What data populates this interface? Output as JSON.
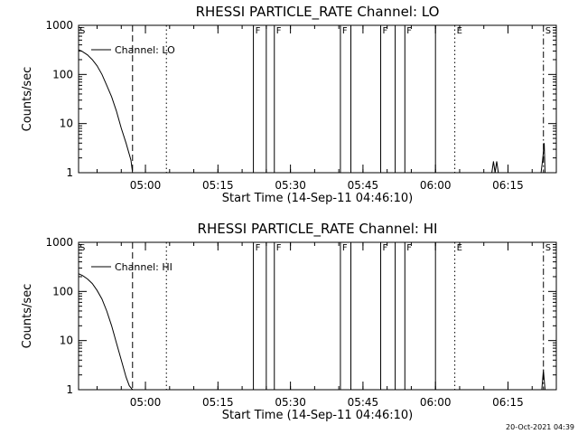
{
  "colors": {
    "background": "#ffffff",
    "foreground": "#000000"
  },
  "footer": {
    "date": "20-Oct-2021 04:39"
  },
  "chart_data": [
    {
      "type": "line",
      "title": "RHESSI PARTICLE_RATE Channel: LO",
      "xlabel": "Start Time (14-Sep-11 04:46:10)",
      "ylabel": "Counts/sec",
      "y_scale": "log",
      "ylim": [
        1,
        1000
      ],
      "y_ticks": [
        "1",
        "10",
        "100",
        "1000"
      ],
      "xlim": [
        "04:46:10",
        "06:25:00"
      ],
      "x_ticks": [
        "05:00",
        "05:15",
        "05:30",
        "05:45",
        "06:00",
        "06:15"
      ],
      "legend": {
        "label": "Channel: LO",
        "placement": "top-left"
      },
      "grid": false,
      "series": [
        {
          "name": "Channel: LO",
          "x": [
            "04:46:10",
            "04:47:00",
            "04:48:00",
            "04:49:00",
            "04:50:00",
            "04:51:00",
            "04:52:00",
            "04:53:00",
            "04:54:00",
            "04:55:00",
            "04:56:00",
            "04:57:00",
            "04:57:20"
          ],
          "y": [
            320,
            290,
            250,
            200,
            150,
            100,
            60,
            35,
            18,
            8,
            4,
            1.8,
            1
          ]
        },
        {
          "name": "",
          "x": [
            "06:11:40",
            "06:12:00",
            "06:12:20",
            "06:12:40",
            "06:13:00"
          ],
          "y": [
            1,
            1.7,
            1,
            1.7,
            1
          ]
        },
        {
          "name": "",
          "x": [
            "06:21:50",
            "06:22:10",
            "06:22:30",
            "06:22:40"
          ],
          "y": [
            1,
            1.8,
            4,
            1
          ]
        }
      ],
      "vlines": [
        {
          "x": "04:57:20",
          "style": "dashed",
          "label": ""
        },
        {
          "x": "05:04:20",
          "style": "dotted",
          "label": ""
        },
        {
          "x": "05:22:20",
          "style": "solid",
          "label": "F"
        },
        {
          "x": "05:25:00",
          "style": "solid",
          "label": ""
        },
        {
          "x": "05:26:40",
          "style": "solid",
          "label": "F"
        },
        {
          "x": "05:40:20",
          "style": "solid",
          "label": "F"
        },
        {
          "x": "05:42:30",
          "style": "solid",
          "label": ""
        },
        {
          "x": "05:48:40",
          "style": "solid",
          "label": "F"
        },
        {
          "x": "05:51:40",
          "style": "solid",
          "label": ""
        },
        {
          "x": "05:53:40",
          "style": "solid",
          "label": "F"
        },
        {
          "x": "06:00:00",
          "style": "solid",
          "label": ""
        },
        {
          "x": "06:04:00",
          "style": "dotted",
          "label": "E"
        },
        {
          "x": "06:22:20",
          "style": "dashdot",
          "label": "S"
        }
      ],
      "corner_label": "S"
    },
    {
      "type": "line",
      "title": "RHESSI PARTICLE_RATE Channel: HI",
      "xlabel": "Start Time (14-Sep-11 04:46:10)",
      "ylabel": "Counts/sec",
      "y_scale": "log",
      "ylim": [
        1,
        1000
      ],
      "y_ticks": [
        "1",
        "10",
        "100",
        "1000"
      ],
      "xlim": [
        "04:46:10",
        "06:25:00"
      ],
      "x_ticks": [
        "05:00",
        "05:15",
        "05:30",
        "05:45",
        "06:00",
        "06:15"
      ],
      "legend": {
        "label": "Channel: HI",
        "placement": "top-left"
      },
      "grid": false,
      "series": [
        {
          "name": "Channel: HI",
          "x": [
            "04:46:10",
            "04:47:00",
            "04:48:00",
            "04:49:00",
            "04:50:00",
            "04:51:00",
            "04:52:00",
            "04:53:00",
            "04:54:00",
            "04:55:00",
            "04:56:00",
            "04:56:40",
            "04:57:20"
          ],
          "y": [
            230,
            210,
            180,
            145,
            105,
            70,
            40,
            20,
            9,
            4,
            1.8,
            1.2,
            1
          ]
        },
        {
          "name": "",
          "x": [
            "06:22:00",
            "06:22:20",
            "06:22:40"
          ],
          "y": [
            1,
            2.5,
            1
          ]
        }
      ],
      "vlines": [
        {
          "x": "04:57:20",
          "style": "dashed",
          "label": ""
        },
        {
          "x": "05:04:20",
          "style": "dotted",
          "label": ""
        },
        {
          "x": "05:22:20",
          "style": "solid",
          "label": "F"
        },
        {
          "x": "05:25:00",
          "style": "solid",
          "label": ""
        },
        {
          "x": "05:26:40",
          "style": "solid",
          "label": "F"
        },
        {
          "x": "05:40:20",
          "style": "solid",
          "label": "F"
        },
        {
          "x": "05:42:30",
          "style": "solid",
          "label": ""
        },
        {
          "x": "05:48:40",
          "style": "solid",
          "label": "F"
        },
        {
          "x": "05:51:40",
          "style": "solid",
          "label": ""
        },
        {
          "x": "05:53:40",
          "style": "solid",
          "label": "F"
        },
        {
          "x": "06:00:00",
          "style": "solid",
          "label": ""
        },
        {
          "x": "06:04:00",
          "style": "dotted",
          "label": "E"
        },
        {
          "x": "06:22:20",
          "style": "dashdot",
          "label": "S"
        }
      ],
      "corner_label": "S"
    }
  ]
}
